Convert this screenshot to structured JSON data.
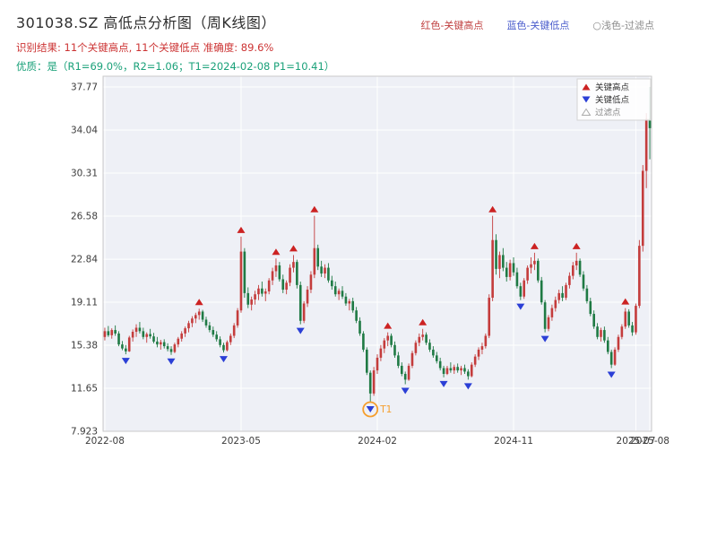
{
  "header": {
    "title": "301038.SZ 高低点分析图（周K线图）",
    "title_color": "#2e2e2e",
    "legend_top": [
      {
        "label": "红色-关键高点",
        "color": "#c04040"
      },
      {
        "label": "蓝色-关键低点",
        "color": "#4a5ccc"
      },
      {
        "label": "○浅色-过滤点",
        "color": "#8a8a8a"
      }
    ],
    "result_line": "识别结果: 11个关键高点, 11个关键低点  准确度: 89.6%",
    "result_color": "#cc3333",
    "quality_line": "优质：是（R1=69.0%，R2=1.06；T1=2024-02-08 P1=10.41）",
    "quality_color": "#1aa179"
  },
  "chart_data": {
    "type": "candlestick",
    "period": "weekly",
    "x_start_date": "2022-08-25",
    "interval_days": 7,
    "y_domain": [
      7.923,
      38.7
    ],
    "y_ticks": [
      "7.923",
      "11.65",
      "15.38",
      "19.11",
      "22.84",
      "26.58",
      "30.31",
      "34.04",
      "37.77"
    ],
    "x_ticks": [
      {
        "w": 0,
        "label": "2022-08"
      },
      {
        "w": 39,
        "label": "2023-05"
      },
      {
        "w": 78,
        "label": "2024-02"
      },
      {
        "w": 117,
        "label": "2024-11"
      },
      {
        "w": 152,
        "label": "2025-07"
      },
      {
        "w": 156,
        "label": "2025-08"
      }
    ],
    "candles": [
      [
        16.1,
        16.9,
        15.8,
        16.6
      ],
      [
        16.6,
        17.05,
        16.1,
        16.25
      ],
      [
        16.25,
        16.85,
        15.95,
        16.7
      ],
      [
        16.7,
        17.1,
        16.2,
        16.4
      ],
      [
        16.4,
        16.6,
        15.3,
        15.45
      ],
      [
        15.45,
        15.75,
        14.95,
        15.1
      ],
      [
        15.1,
        15.4,
        14.6,
        14.85
      ],
      [
        14.85,
        16.2,
        14.8,
        16.05
      ],
      [
        16.05,
        16.75,
        15.7,
        16.55
      ],
      [
        16.55,
        17.2,
        16.1,
        16.9
      ],
      [
        16.9,
        17.4,
        16.4,
        16.6
      ],
      [
        16.6,
        16.9,
        15.9,
        16.1
      ],
      [
        16.1,
        16.5,
        15.6,
        16.35
      ],
      [
        16.35,
        16.8,
        15.95,
        16.15
      ],
      [
        16.15,
        16.45,
        15.55,
        15.7
      ],
      [
        15.7,
        16.1,
        15.2,
        15.45
      ],
      [
        15.45,
        15.85,
        15.0,
        15.65
      ],
      [
        15.65,
        15.9,
        15.1,
        15.3
      ],
      [
        15.3,
        15.55,
        14.85,
        15.05
      ],
      [
        15.05,
        15.3,
        14.55,
        14.8
      ],
      [
        14.8,
        15.6,
        14.7,
        15.45
      ],
      [
        15.45,
        16.1,
        15.2,
        15.95
      ],
      [
        15.95,
        16.6,
        15.7,
        16.4
      ],
      [
        16.4,
        17.0,
        16.1,
        16.85
      ],
      [
        16.85,
        17.5,
        16.5,
        17.3
      ],
      [
        17.3,
        17.9,
        16.95,
        17.7
      ],
      [
        17.7,
        18.2,
        17.3,
        18.0
      ],
      [
        18.0,
        18.55,
        17.6,
        18.3
      ],
      [
        18.3,
        18.45,
        17.4,
        17.6
      ],
      [
        17.6,
        17.85,
        16.9,
        17.1
      ],
      [
        17.1,
        17.4,
        16.5,
        16.7
      ],
      [
        16.7,
        17.0,
        16.1,
        16.3
      ],
      [
        16.3,
        16.6,
        15.7,
        15.9
      ],
      [
        15.9,
        16.15,
        15.2,
        15.4
      ],
      [
        15.4,
        15.6,
        14.75,
        14.95
      ],
      [
        14.95,
        15.8,
        14.85,
        15.65
      ],
      [
        15.65,
        16.4,
        15.4,
        16.2
      ],
      [
        16.2,
        17.3,
        16.0,
        17.1
      ],
      [
        17.1,
        18.6,
        16.9,
        18.4
      ],
      [
        18.4,
        24.8,
        18.2,
        23.5
      ],
      [
        23.5,
        23.8,
        19.5,
        19.9
      ],
      [
        19.9,
        20.4,
        18.6,
        18.9
      ],
      [
        18.9,
        19.6,
        18.4,
        19.35
      ],
      [
        19.35,
        20.1,
        18.9,
        19.8
      ],
      [
        19.8,
        20.6,
        19.3,
        20.3
      ],
      [
        20.3,
        20.9,
        19.6,
        19.85
      ],
      [
        19.85,
        20.3,
        19.2,
        20.05
      ],
      [
        20.05,
        21.2,
        19.8,
        21.0
      ],
      [
        21.0,
        22.1,
        20.6,
        21.8
      ],
      [
        21.8,
        22.9,
        21.3,
        22.3
      ],
      [
        22.3,
        22.6,
        20.9,
        21.1
      ],
      [
        21.1,
        21.5,
        19.9,
        20.2
      ],
      [
        20.2,
        21.0,
        19.8,
        20.8
      ],
      [
        20.8,
        22.4,
        20.5,
        22.1
      ],
      [
        22.1,
        23.2,
        21.7,
        22.6
      ],
      [
        22.6,
        22.8,
        20.3,
        20.6
      ],
      [
        20.6,
        20.9,
        17.2,
        17.5
      ],
      [
        17.5,
        19.2,
        17.3,
        19.0
      ],
      [
        19.0,
        20.5,
        18.7,
        20.2
      ],
      [
        20.2,
        21.8,
        19.9,
        21.5
      ],
      [
        21.5,
        26.6,
        21.2,
        23.8
      ],
      [
        23.8,
        24.1,
        21.9,
        22.2
      ],
      [
        22.2,
        22.7,
        21.3,
        21.6
      ],
      [
        21.6,
        22.4,
        21.2,
        22.1
      ],
      [
        22.1,
        22.5,
        20.8,
        21.0
      ],
      [
        21.0,
        21.4,
        20.2,
        20.5
      ],
      [
        20.5,
        20.9,
        19.6,
        19.8
      ],
      [
        19.8,
        20.3,
        19.3,
        20.1
      ],
      [
        20.1,
        20.5,
        19.4,
        19.6
      ],
      [
        19.6,
        19.9,
        18.8,
        19.0
      ],
      [
        19.0,
        19.4,
        18.4,
        19.2
      ],
      [
        19.2,
        19.5,
        18.2,
        18.4
      ],
      [
        18.4,
        18.7,
        17.3,
        17.5
      ],
      [
        17.5,
        17.8,
        16.2,
        16.4
      ],
      [
        16.4,
        16.6,
        14.8,
        15.0
      ],
      [
        15.0,
        15.2,
        12.8,
        13.0
      ],
      [
        13.0,
        13.2,
        10.41,
        11.2
      ],
      [
        11.2,
        13.5,
        11.0,
        13.2
      ],
      [
        13.2,
        14.6,
        12.9,
        14.3
      ],
      [
        14.3,
        15.4,
        14.0,
        15.1
      ],
      [
        15.1,
        16.0,
        14.7,
        15.8
      ],
      [
        15.8,
        16.5,
        15.3,
        16.2
      ],
      [
        16.2,
        16.4,
        15.2,
        15.4
      ],
      [
        15.4,
        15.7,
        14.3,
        14.5
      ],
      [
        14.5,
        14.8,
        13.4,
        13.6
      ],
      [
        13.6,
        13.9,
        12.7,
        12.9
      ],
      [
        12.9,
        13.1,
        12.0,
        12.4
      ],
      [
        12.4,
        13.8,
        12.3,
        13.6
      ],
      [
        13.6,
        14.9,
        13.4,
        14.7
      ],
      [
        14.7,
        15.8,
        14.5,
        15.6
      ],
      [
        15.6,
        16.4,
        15.3,
        16.1
      ],
      [
        16.1,
        16.8,
        15.8,
        16.3
      ],
      [
        16.3,
        16.5,
        15.4,
        15.6
      ],
      [
        15.6,
        15.9,
        14.8,
        15.0
      ],
      [
        15.0,
        15.3,
        14.3,
        14.5
      ],
      [
        14.5,
        14.8,
        13.8,
        14.0
      ],
      [
        14.0,
        14.3,
        13.2,
        13.4
      ],
      [
        13.4,
        13.6,
        12.6,
        12.9
      ],
      [
        12.9,
        13.6,
        12.8,
        13.4
      ],
      [
        13.4,
        13.9,
        13.0,
        13.2
      ],
      [
        13.2,
        13.7,
        12.9,
        13.5
      ],
      [
        13.5,
        13.8,
        13.0,
        13.2
      ],
      [
        13.2,
        13.6,
        12.8,
        13.4
      ],
      [
        13.4,
        13.7,
        12.9,
        13.1
      ],
      [
        13.1,
        13.3,
        12.4,
        12.7
      ],
      [
        12.7,
        13.9,
        12.6,
        13.7
      ],
      [
        13.7,
        14.6,
        13.5,
        14.4
      ],
      [
        14.4,
        15.2,
        14.1,
        15.0
      ],
      [
        15.0,
        15.6,
        14.6,
        15.3
      ],
      [
        15.3,
        16.4,
        15.1,
        16.2
      ],
      [
        16.2,
        19.8,
        16.0,
        19.5
      ],
      [
        19.5,
        26.6,
        19.2,
        24.5
      ],
      [
        24.5,
        25.0,
        21.5,
        22.0
      ],
      [
        22.0,
        23.5,
        21.2,
        23.2
      ],
      [
        23.2,
        23.8,
        21.8,
        22.1
      ],
      [
        22.1,
        22.6,
        20.9,
        21.3
      ],
      [
        21.3,
        22.8,
        21.0,
        22.5
      ],
      [
        22.5,
        23.0,
        21.4,
        21.7
      ],
      [
        21.7,
        22.1,
        20.3,
        20.5
      ],
      [
        20.5,
        20.8,
        19.3,
        19.6
      ],
      [
        19.6,
        21.2,
        19.4,
        21.0
      ],
      [
        21.0,
        22.3,
        20.7,
        22.1
      ],
      [
        22.1,
        23.0,
        21.6,
        22.4
      ],
      [
        22.4,
        23.4,
        21.9,
        22.7
      ],
      [
        22.7,
        22.9,
        20.8,
        21.0
      ],
      [
        21.0,
        21.3,
        18.9,
        19.1
      ],
      [
        19.1,
        19.3,
        16.5,
        16.8
      ],
      [
        16.8,
        18.0,
        16.6,
        17.8
      ],
      [
        17.8,
        18.9,
        17.5,
        18.6
      ],
      [
        18.6,
        19.6,
        18.3,
        19.3
      ],
      [
        19.3,
        20.2,
        19.0,
        19.9
      ],
      [
        19.9,
        20.5,
        19.2,
        19.5
      ],
      [
        19.5,
        20.8,
        19.3,
        20.6
      ],
      [
        20.6,
        21.7,
        20.3,
        21.4
      ],
      [
        21.4,
        22.6,
        21.1,
        22.3
      ],
      [
        22.3,
        23.4,
        21.9,
        22.7
      ],
      [
        22.7,
        22.9,
        21.3,
        21.5
      ],
      [
        21.5,
        21.8,
        20.1,
        20.3
      ],
      [
        20.3,
        20.6,
        19.0,
        19.2
      ],
      [
        19.2,
        19.5,
        17.9,
        18.1
      ],
      [
        18.1,
        18.4,
        16.8,
        17.0
      ],
      [
        17.0,
        17.3,
        15.9,
        16.1
      ],
      [
        16.1,
        16.9,
        15.7,
        16.7
      ],
      [
        16.7,
        17.0,
        15.6,
        15.8
      ],
      [
        15.8,
        16.1,
        14.6,
        14.8
      ],
      [
        14.8,
        15.0,
        13.4,
        13.7
      ],
      [
        13.7,
        15.2,
        13.6,
        15.0
      ],
      [
        15.0,
        16.3,
        14.8,
        16.1
      ],
      [
        16.1,
        17.2,
        15.9,
        17.0
      ],
      [
        17.0,
        18.6,
        16.8,
        18.3
      ],
      [
        18.3,
        18.5,
        16.9,
        17.1
      ],
      [
        17.1,
        17.4,
        16.2,
        16.5
      ],
      [
        16.5,
        19.0,
        16.3,
        18.8
      ],
      [
        18.8,
        24.5,
        18.6,
        24.0
      ],
      [
        24.0,
        31.0,
        23.5,
        30.5
      ],
      [
        30.5,
        35.5,
        29.0,
        35.0
      ],
      [
        35.0,
        37.77,
        31.5,
        34.2
      ]
    ],
    "key_high_weeks": [
      27,
      39,
      49,
      54,
      60,
      81,
      91,
      111,
      123,
      135,
      149
    ],
    "key_low_weeks": [
      6,
      19,
      34,
      56,
      76,
      86,
      97,
      104,
      119,
      126,
      145
    ],
    "t1": {
      "week": 76,
      "price": 10.41,
      "label": "T1"
    },
    "legend": [
      {
        "type": "key_high",
        "label": "关键高点"
      },
      {
        "type": "key_low",
        "label": "关键低点"
      },
      {
        "type": "filtered",
        "label": "过滤点"
      }
    ],
    "colors": {
      "up": "#c43c3c",
      "down": "#1f7a44",
      "key_high": "#cc2222",
      "key_low": "#2b3fd6",
      "filtered": "#aaaaaa",
      "highlight": "#f59e2d",
      "grid": "#ffffff",
      "plot_bg": "#eef0f6",
      "border": "#c9c9c9",
      "axis_text": "#3b3b3b"
    }
  }
}
